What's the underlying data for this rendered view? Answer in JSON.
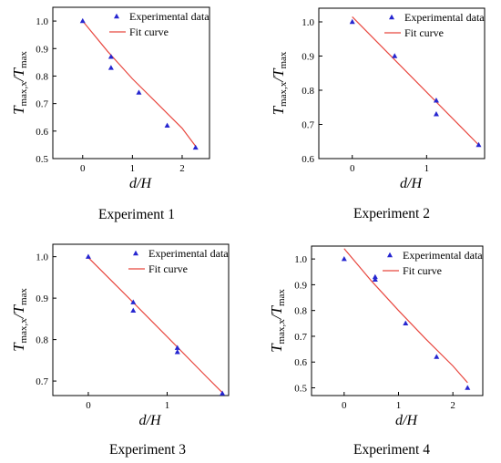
{
  "colors": {
    "marker": "#2626d0",
    "fit_line": "#e8473f",
    "axis": "#000000"
  },
  "chart_data": [
    {
      "type": "scatter",
      "title": "Experiment 1",
      "xlabel": "d/H",
      "ylabel": {
        "main": "T",
        "sub1": "max,x",
        "slash": "/",
        "main2": "T",
        "sub2": "max"
      },
      "xlim": [
        -0.6,
        2.55
      ],
      "ylim": [
        0.5,
        1.05
      ],
      "xticks": [
        0,
        1,
        2
      ],
      "yticks": [
        0.5,
        0.6,
        0.7,
        0.8,
        0.9,
        1.0
      ],
      "ytick_labels": [
        "0.5",
        "0.6",
        "0.7",
        "0.8",
        "0.9",
        "1.0"
      ],
      "legend": {
        "position": "top-right",
        "entries": [
          "Experimental data",
          "Fit curve"
        ]
      },
      "series": [
        {
          "name": "Experimental data",
          "kind": "scatter",
          "x": [
            0,
            0.57,
            0.57,
            1.13,
            1.7,
            2.27
          ],
          "y": [
            1.0,
            0.87,
            0.83,
            0.74,
            0.62,
            0.54
          ]
        },
        {
          "name": "Fit curve",
          "kind": "line",
          "x": [
            0,
            0.5,
            1.0,
            1.5,
            2.0,
            2.27
          ],
          "y": [
            1.0,
            0.89,
            0.79,
            0.7,
            0.61,
            0.545
          ]
        }
      ]
    },
    {
      "type": "scatter",
      "title": "Experiment 2",
      "xlabel": "d/H",
      "ylabel": {
        "main": "T",
        "sub1": "max,x",
        "slash": "/",
        "main2": "T",
        "sub2": "max"
      },
      "xlim": [
        -0.45,
        1.78
      ],
      "ylim": [
        0.6,
        1.04
      ],
      "xticks": [
        0,
        1
      ],
      "yticks": [
        0.6,
        0.7,
        0.8,
        0.9,
        1.0
      ],
      "ytick_labels": [
        "0.6",
        "0.7",
        "0.8",
        "0.9",
        "1.0"
      ],
      "legend": {
        "position": "top-right",
        "entries": [
          "Experimental data",
          "Fit curve"
        ]
      },
      "series": [
        {
          "name": "Experimental data",
          "kind": "scatter",
          "x": [
            0,
            0.57,
            1.13,
            1.13,
            1.7
          ],
          "y": [
            1.0,
            0.9,
            0.77,
            0.73,
            0.64
          ]
        },
        {
          "name": "Fit curve",
          "kind": "line",
          "x": [
            0,
            1.7
          ],
          "y": [
            1.015,
            0.64
          ]
        }
      ]
    },
    {
      "type": "scatter",
      "title": "Experiment 3",
      "xlabel": "d/H",
      "ylabel": {
        "main": "T",
        "sub1": "max,x",
        "slash": "/",
        "main2": "T",
        "sub2": "max"
      },
      "xlim": [
        -0.45,
        1.78
      ],
      "ylim": [
        0.665,
        1.03
      ],
      "xticks": [
        0,
        1
      ],
      "yticks": [
        0.7,
        0.8,
        0.9,
        1.0
      ],
      "ytick_labels": [
        "0.7",
        "0.8",
        "0.9",
        "1.0"
      ],
      "legend": {
        "position": "top-right",
        "entries": [
          "Experimental data",
          "Fit curve"
        ]
      },
      "series": [
        {
          "name": "Experimental data",
          "kind": "scatter",
          "x": [
            0,
            0.57,
            0.57,
            1.13,
            1.13,
            1.7
          ],
          "y": [
            1.0,
            0.89,
            0.87,
            0.78,
            0.77,
            0.67
          ]
        },
        {
          "name": "Fit curve",
          "kind": "line",
          "x": [
            0,
            0.5,
            1.0,
            1.5,
            1.7
          ],
          "y": [
            0.998,
            0.903,
            0.807,
            0.71,
            0.672
          ]
        }
      ]
    },
    {
      "type": "scatter",
      "title": "Experiment 4",
      "xlabel": "d/H",
      "ylabel": {
        "main": "T",
        "sub1": "max,x",
        "slash": "/",
        "main2": "T",
        "sub2": "max"
      },
      "xlim": [
        -0.6,
        2.55
      ],
      "ylim": [
        0.47,
        1.05
      ],
      "xticks": [
        0,
        1,
        2
      ],
      "yticks": [
        0.5,
        0.6,
        0.7,
        0.8,
        0.9,
        1.0
      ],
      "ytick_labels": [
        "0.5",
        "0.6",
        "0.7",
        "0.8",
        "0.9",
        "1.0"
      ],
      "legend": {
        "position": "top-right",
        "entries": [
          "Experimental data",
          "Fit curve"
        ]
      },
      "series": [
        {
          "name": "Experimental data",
          "kind": "scatter",
          "x": [
            0,
            0.57,
            0.57,
            1.13,
            1.7,
            2.27
          ],
          "y": [
            1.0,
            0.93,
            0.92,
            0.75,
            0.62,
            0.5
          ]
        },
        {
          "name": "Fit curve",
          "kind": "line",
          "x": [
            0,
            0.5,
            1.0,
            1.5,
            2.0,
            2.27
          ],
          "y": [
            1.04,
            0.915,
            0.8,
            0.69,
            0.585,
            0.52
          ]
        }
      ]
    }
  ]
}
